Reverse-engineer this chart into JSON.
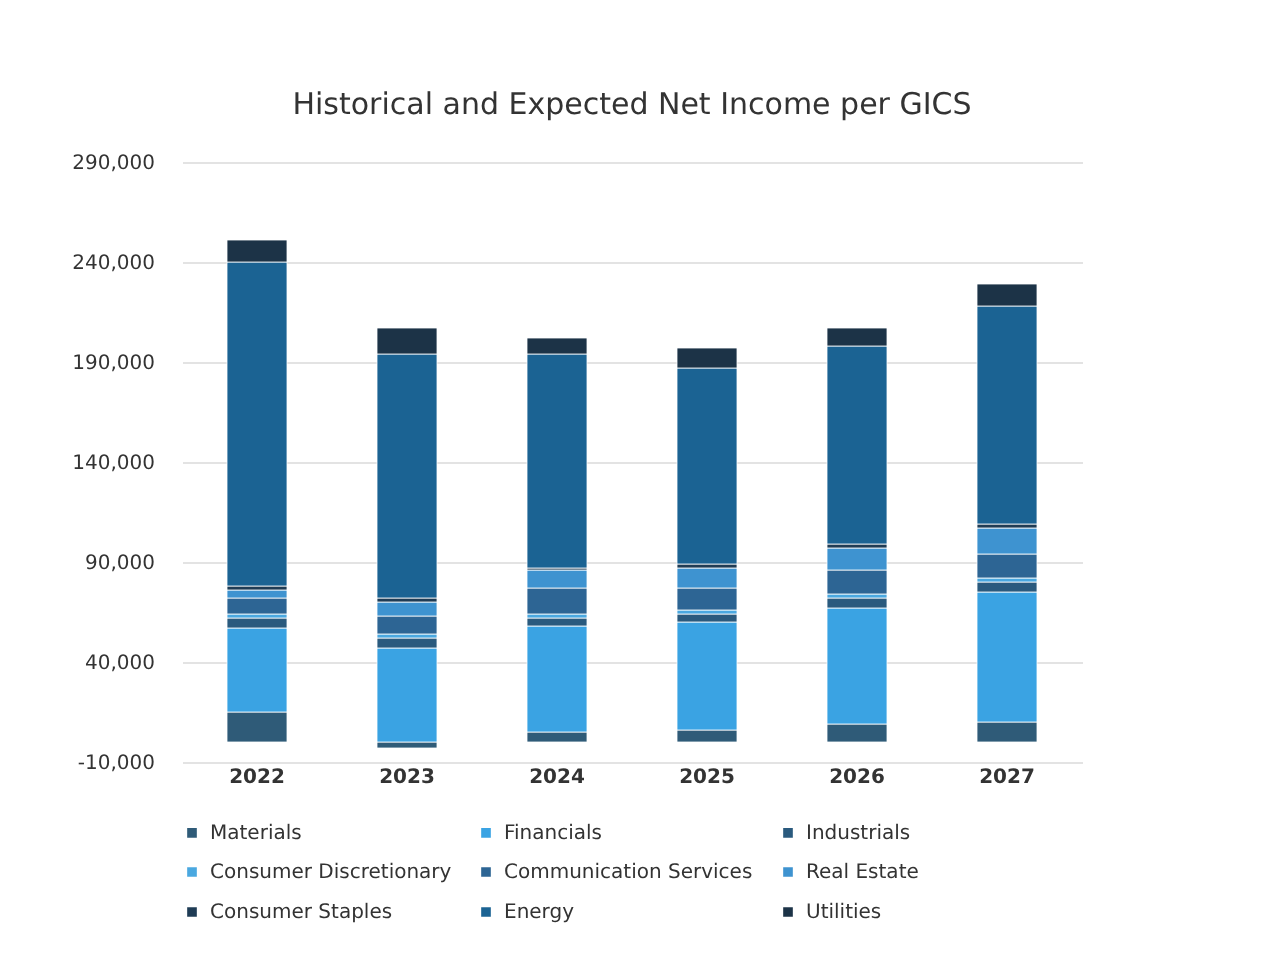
{
  "chart_data": {
    "type": "bar",
    "title": "Historical and Expected Net Income per GICS",
    "stacked": true,
    "categories": [
      "2022",
      "2023",
      "2024",
      "2025",
      "2026",
      "2027"
    ],
    "ylim": [
      -10000,
      290000
    ],
    "yticks": [
      {
        "value": -10000,
        "label": "-10,000"
      },
      {
        "value": 40000,
        "label": "40,000"
      },
      {
        "value": 90000,
        "label": "90,000"
      },
      {
        "value": 140000,
        "label": "140,000"
      },
      {
        "value": 190000,
        "label": "190,000"
      },
      {
        "value": 240000,
        "label": "240,000"
      },
      {
        "value": 290000,
        "label": "290,000"
      }
    ],
    "grid": "y",
    "legend": "bottom",
    "series": [
      {
        "name": "Materials",
        "color": "#2f5b78",
        "values": [
          15000,
          -3000,
          5000,
          6000,
          9000,
          10000
        ]
      },
      {
        "name": "Financials",
        "color": "#3aa3e3",
        "values": [
          42000,
          47000,
          53000,
          54000,
          58000,
          65000
        ]
      },
      {
        "name": "Industrials",
        "color": "#2a5a7e",
        "values": [
          5000,
          5000,
          4000,
          4000,
          5000,
          5000
        ]
      },
      {
        "name": "Consumer Discretionary",
        "color": "#4aa8e0",
        "values": [
          2000,
          2000,
          2000,
          2000,
          2000,
          2000
        ]
      },
      {
        "name": "Communication Services",
        "color": "#2d6594",
        "values": [
          8000,
          9000,
          13000,
          11000,
          12000,
          12000
        ]
      },
      {
        "name": "Real Estate",
        "color": "#3e93d0",
        "values": [
          4000,
          7000,
          9000,
          10000,
          11000,
          13000
        ]
      },
      {
        "name": "Consumer Staples",
        "color": "#1f3c55",
        "values": [
          2000,
          2000,
          1000,
          2000,
          2000,
          2000
        ]
      },
      {
        "name": "Energy",
        "color": "#1b6393",
        "values": [
          162000,
          122000,
          107000,
          98000,
          99000,
          109000
        ]
      },
      {
        "name": "Utilities",
        "color": "#1c3347",
        "values": [
          11000,
          13000,
          8000,
          10000,
          9000,
          11000
        ]
      }
    ]
  }
}
